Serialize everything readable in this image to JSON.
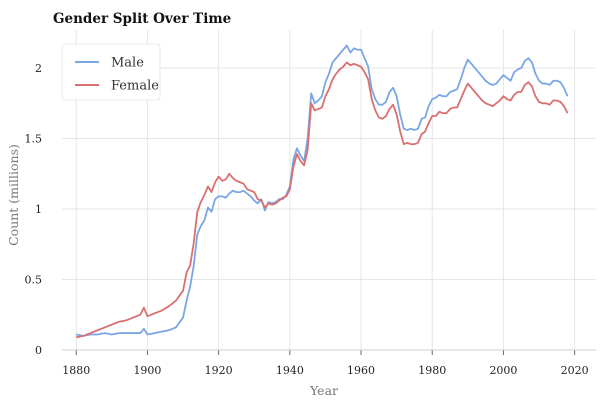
{
  "chart_data": {
    "type": "line",
    "title": "Gender Split Over Time",
    "xlabel": "Year",
    "ylabel": "Count (millions)",
    "xlim": [
      1876,
      2026
    ],
    "ylim": [
      0,
      2.27
    ],
    "xticks": [
      1880,
      1900,
      1920,
      1940,
      1960,
      1980,
      2000,
      2020
    ],
    "yticks": [
      0,
      0.5,
      1,
      1.5,
      2
    ],
    "ytick_labels": [
      "0",
      "0.5",
      "1",
      "1.5",
      "2"
    ],
    "grid": true,
    "legend": "top-left",
    "series": [
      {
        "name": "Male",
        "color": "#7aa6e6",
        "points": [
          [
            1880,
            0.11
          ],
          [
            1882,
            0.1
          ],
          [
            1884,
            0.11
          ],
          [
            1886,
            0.11
          ],
          [
            1888,
            0.12
          ],
          [
            1890,
            0.11
          ],
          [
            1892,
            0.12
          ],
          [
            1894,
            0.12
          ],
          [
            1896,
            0.12
          ],
          [
            1898,
            0.12
          ],
          [
            1899,
            0.15
          ],
          [
            1900,
            0.11
          ],
          [
            1902,
            0.12
          ],
          [
            1904,
            0.13
          ],
          [
            1906,
            0.14
          ],
          [
            1908,
            0.16
          ],
          [
            1910,
            0.23
          ],
          [
            1911,
            0.35
          ],
          [
            1912,
            0.45
          ],
          [
            1913,
            0.6
          ],
          [
            1914,
            0.82
          ],
          [
            1915,
            0.88
          ],
          [
            1916,
            0.92
          ],
          [
            1917,
            1.01
          ],
          [
            1918,
            0.98
          ],
          [
            1919,
            1.07
          ],
          [
            1920,
            1.09
          ],
          [
            1921,
            1.09
          ],
          [
            1922,
            1.08
          ],
          [
            1923,
            1.11
          ],
          [
            1924,
            1.13
          ],
          [
            1925,
            1.12
          ],
          [
            1926,
            1.12
          ],
          [
            1927,
            1.13
          ],
          [
            1928,
            1.11
          ],
          [
            1929,
            1.09
          ],
          [
            1930,
            1.06
          ],
          [
            1931,
            1.04
          ],
          [
            1932,
            1.07
          ],
          [
            1933,
            0.99
          ],
          [
            1934,
            1.05
          ],
          [
            1935,
            1.04
          ],
          [
            1936,
            1.05
          ],
          [
            1937,
            1.07
          ],
          [
            1938,
            1.07
          ],
          [
            1939,
            1.1
          ],
          [
            1940,
            1.16
          ],
          [
            1941,
            1.35
          ],
          [
            1942,
            1.43
          ],
          [
            1943,
            1.38
          ],
          [
            1944,
            1.34
          ],
          [
            1945,
            1.5
          ],
          [
            1946,
            1.82
          ],
          [
            1947,
            1.75
          ],
          [
            1948,
            1.77
          ],
          [
            1949,
            1.8
          ],
          [
            1950,
            1.9
          ],
          [
            1951,
            1.96
          ],
          [
            1952,
            2.04
          ],
          [
            1953,
            2.07
          ],
          [
            1954,
            2.1
          ],
          [
            1955,
            2.13
          ],
          [
            1956,
            2.16
          ],
          [
            1957,
            2.11
          ],
          [
            1958,
            2.14
          ],
          [
            1959,
            2.13
          ],
          [
            1960,
            2.13
          ],
          [
            1961,
            2.07
          ],
          [
            1962,
            2.01
          ],
          [
            1963,
            1.85
          ],
          [
            1964,
            1.78
          ],
          [
            1965,
            1.74
          ],
          [
            1966,
            1.74
          ],
          [
            1967,
            1.76
          ],
          [
            1968,
            1.83
          ],
          [
            1969,
            1.86
          ],
          [
            1970,
            1.8
          ],
          [
            1971,
            1.67
          ],
          [
            1972,
            1.57
          ],
          [
            1973,
            1.56
          ],
          [
            1974,
            1.57
          ],
          [
            1975,
            1.56
          ],
          [
            1976,
            1.57
          ],
          [
            1977,
            1.64
          ],
          [
            1978,
            1.65
          ],
          [
            1979,
            1.73
          ],
          [
            1980,
            1.78
          ],
          [
            1981,
            1.79
          ],
          [
            1982,
            1.81
          ],
          [
            1983,
            1.8
          ],
          [
            1984,
            1.8
          ],
          [
            1985,
            1.83
          ],
          [
            1986,
            1.84
          ],
          [
            1987,
            1.85
          ],
          [
            1988,
            1.92
          ],
          [
            1989,
            2.0
          ],
          [
            1990,
            2.06
          ],
          [
            1991,
            2.03
          ],
          [
            1992,
            2.0
          ],
          [
            1993,
            1.97
          ],
          [
            1994,
            1.94
          ],
          [
            1995,
            1.91
          ],
          [
            1996,
            1.89
          ],
          [
            1997,
            1.88
          ],
          [
            1998,
            1.89
          ],
          [
            1999,
            1.92
          ],
          [
            2000,
            1.95
          ],
          [
            2001,
            1.93
          ],
          [
            2002,
            1.91
          ],
          [
            2003,
            1.97
          ],
          [
            2004,
            1.99
          ],
          [
            2005,
            2.0
          ],
          [
            2006,
            2.05
          ],
          [
            2007,
            2.07
          ],
          [
            2008,
            2.04
          ],
          [
            2009,
            1.96
          ],
          [
            2010,
            1.91
          ],
          [
            2011,
            1.89
          ],
          [
            2012,
            1.89
          ],
          [
            2013,
            1.88
          ],
          [
            2014,
            1.91
          ],
          [
            2015,
            1.91
          ],
          [
            2016,
            1.9
          ],
          [
            2017,
            1.86
          ],
          [
            2018,
            1.8
          ]
        ]
      },
      {
        "name": "Female",
        "color": "#d97070",
        "points": [
          [
            1880,
            0.09
          ],
          [
            1882,
            0.1
          ],
          [
            1884,
            0.12
          ],
          [
            1886,
            0.14
          ],
          [
            1888,
            0.16
          ],
          [
            1890,
            0.18
          ],
          [
            1892,
            0.2
          ],
          [
            1894,
            0.21
          ],
          [
            1896,
            0.23
          ],
          [
            1898,
            0.25
          ],
          [
            1899,
            0.3
          ],
          [
            1900,
            0.24
          ],
          [
            1902,
            0.26
          ],
          [
            1904,
            0.28
          ],
          [
            1906,
            0.31
          ],
          [
            1908,
            0.35
          ],
          [
            1910,
            0.42
          ],
          [
            1911,
            0.55
          ],
          [
            1912,
            0.6
          ],
          [
            1913,
            0.76
          ],
          [
            1914,
            0.98
          ],
          [
            1915,
            1.05
          ],
          [
            1916,
            1.1
          ],
          [
            1917,
            1.16
          ],
          [
            1918,
            1.12
          ],
          [
            1919,
            1.19
          ],
          [
            1920,
            1.23
          ],
          [
            1921,
            1.2
          ],
          [
            1922,
            1.21
          ],
          [
            1923,
            1.25
          ],
          [
            1924,
            1.22
          ],
          [
            1925,
            1.2
          ],
          [
            1926,
            1.19
          ],
          [
            1927,
            1.18
          ],
          [
            1928,
            1.14
          ],
          [
            1929,
            1.13
          ],
          [
            1930,
            1.12
          ],
          [
            1931,
            1.07
          ],
          [
            1932,
            1.06
          ],
          [
            1933,
            1.01
          ],
          [
            1934,
            1.04
          ],
          [
            1935,
            1.03
          ],
          [
            1936,
            1.04
          ],
          [
            1937,
            1.06
          ],
          [
            1938,
            1.08
          ],
          [
            1939,
            1.09
          ],
          [
            1940,
            1.14
          ],
          [
            1941,
            1.3
          ],
          [
            1942,
            1.39
          ],
          [
            1943,
            1.34
          ],
          [
            1944,
            1.31
          ],
          [
            1945,
            1.42
          ],
          [
            1946,
            1.75
          ],
          [
            1947,
            1.7
          ],
          [
            1948,
            1.71
          ],
          [
            1949,
            1.72
          ],
          [
            1950,
            1.8
          ],
          [
            1951,
            1.85
          ],
          [
            1952,
            1.92
          ],
          [
            1953,
            1.96
          ],
          [
            1954,
            1.99
          ],
          [
            1955,
            2.01
          ],
          [
            1956,
            2.04
          ],
          [
            1957,
            2.02
          ],
          [
            1958,
            2.03
          ],
          [
            1959,
            2.02
          ],
          [
            1960,
            2.01
          ],
          [
            1961,
            1.97
          ],
          [
            1962,
            1.92
          ],
          [
            1963,
            1.78
          ],
          [
            1964,
            1.7
          ],
          [
            1965,
            1.65
          ],
          [
            1966,
            1.64
          ],
          [
            1967,
            1.66
          ],
          [
            1968,
            1.71
          ],
          [
            1969,
            1.74
          ],
          [
            1970,
            1.67
          ],
          [
            1971,
            1.55
          ],
          [
            1972,
            1.46
          ],
          [
            1973,
            1.47
          ],
          [
            1974,
            1.46
          ],
          [
            1975,
            1.46
          ],
          [
            1976,
            1.47
          ],
          [
            1977,
            1.53
          ],
          [
            1978,
            1.55
          ],
          [
            1979,
            1.61
          ],
          [
            1980,
            1.66
          ],
          [
            1981,
            1.66
          ],
          [
            1982,
            1.69
          ],
          [
            1983,
            1.68
          ],
          [
            1984,
            1.68
          ],
          [
            1985,
            1.71
          ],
          [
            1986,
            1.72
          ],
          [
            1987,
            1.72
          ],
          [
            1988,
            1.78
          ],
          [
            1989,
            1.84
          ],
          [
            1990,
            1.89
          ],
          [
            1991,
            1.86
          ],
          [
            1992,
            1.83
          ],
          [
            1993,
            1.8
          ],
          [
            1994,
            1.77
          ],
          [
            1995,
            1.75
          ],
          [
            1996,
            1.74
          ],
          [
            1997,
            1.73
          ],
          [
            1998,
            1.75
          ],
          [
            1999,
            1.77
          ],
          [
            2000,
            1.8
          ],
          [
            2001,
            1.78
          ],
          [
            2002,
            1.77
          ],
          [
            2003,
            1.81
          ],
          [
            2004,
            1.83
          ],
          [
            2005,
            1.83
          ],
          [
            2006,
            1.88
          ],
          [
            2007,
            1.9
          ],
          [
            2008,
            1.87
          ],
          [
            2009,
            1.8
          ],
          [
            2010,
            1.76
          ],
          [
            2011,
            1.75
          ],
          [
            2012,
            1.75
          ],
          [
            2013,
            1.74
          ],
          [
            2014,
            1.77
          ],
          [
            2015,
            1.77
          ],
          [
            2016,
            1.76
          ],
          [
            2017,
            1.73
          ],
          [
            2018,
            1.68
          ]
        ]
      }
    ]
  }
}
